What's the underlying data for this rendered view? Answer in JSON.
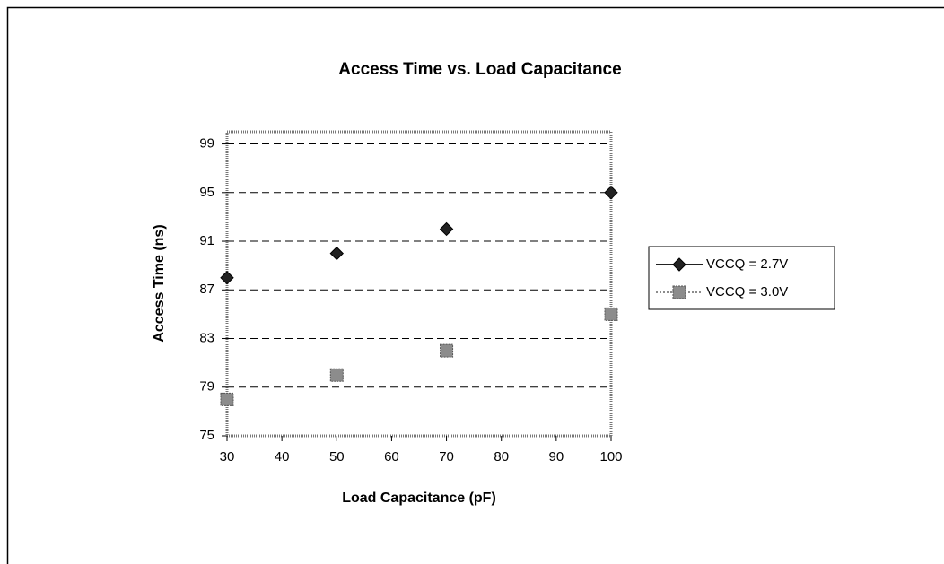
{
  "chart_data": {
    "type": "scatter",
    "title": "Access Time vs. Load Capacitance",
    "x_label": "Load Capacitance (pF)",
    "y_label": "Access Time (ns)",
    "x": [
      30,
      50,
      70,
      100
    ],
    "series": [
      {
        "name": "VCCQ = 2.7V",
        "color": "#222222",
        "marker": "diamond",
        "values": [
          88,
          90,
          92,
          95
        ]
      },
      {
        "name": "VCCQ = 3.0V",
        "color": "#8c8c8c",
        "marker": "square",
        "values": [
          78,
          80,
          82,
          85
        ]
      }
    ],
    "xlim": [
      30,
      100
    ],
    "xticks": [
      30,
      40,
      50,
      60,
      70,
      80,
      90,
      100
    ],
    "ylim": [
      75,
      100
    ],
    "yticks": [
      75,
      79,
      83,
      87,
      91,
      95,
      99
    ],
    "grid": true,
    "legend": "right"
  }
}
